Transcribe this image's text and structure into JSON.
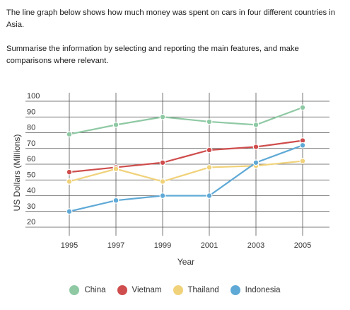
{
  "task": {
    "line1": "The line graph below shows how much money was spent on cars in four different countries in Asia.",
    "line2": "Summarise the information by selecting and reporting the main features, and make comparisons where relevant."
  },
  "chart_data": {
    "type": "line",
    "title": "",
    "xlabel": "Year",
    "ylabel": "US Dollars (Millions)",
    "x": [
      "1995",
      "1997",
      "1999",
      "2001",
      "2003",
      "2005"
    ],
    "yticks": [
      20,
      30,
      40,
      50,
      60,
      70,
      80,
      90,
      100
    ],
    "ylim": [
      20,
      100
    ],
    "grid": true,
    "legend_position": "bottom",
    "series": [
      {
        "name": "China",
        "color": "#8fc9a4",
        "values": [
          79,
          85,
          90,
          87,
          85,
          96
        ]
      },
      {
        "name": "Vietnam",
        "color": "#cf4d4d",
        "values": [
          55,
          58,
          61,
          69,
          71,
          75
        ]
      },
      {
        "name": "Thailand",
        "color": "#f0d27a",
        "values": [
          49,
          57,
          49,
          58,
          59,
          62
        ]
      },
      {
        "name": "Indonesia",
        "color": "#5fa9d6",
        "values": [
          30,
          37,
          40,
          40,
          61,
          72
        ]
      }
    ]
  }
}
